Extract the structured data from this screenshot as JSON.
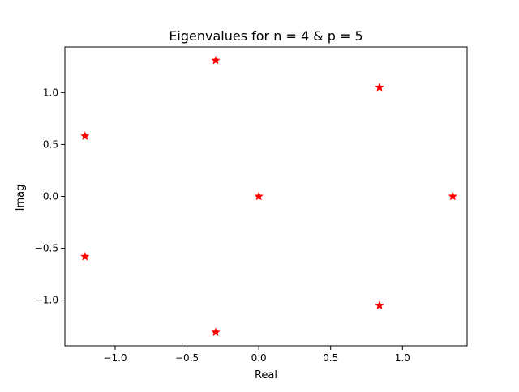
{
  "chart_data": {
    "type": "scatter",
    "title": "Eigenvalues for n = 4 & p = 5",
    "xlabel": "Real",
    "ylabel": "Imag",
    "xlim": [
      -1.35,
      1.45
    ],
    "ylim": [
      -1.44,
      1.44
    ],
    "x_ticks": [
      -1.0,
      -0.5,
      0.0,
      0.5,
      1.0
    ],
    "x_tick_labels": [
      "−1.0",
      "−0.5",
      "0.0",
      "0.5",
      "1.0"
    ],
    "y_ticks": [
      -1.0,
      -0.5,
      0.0,
      0.5,
      1.0
    ],
    "y_tick_labels": [
      "−1.0",
      "−0.5",
      "0.0",
      "0.5",
      "1.0"
    ],
    "grid": false,
    "marker": "star",
    "marker_color": "#ff0000",
    "series": [
      {
        "points": [
          {
            "x": -0.3,
            "y": 1.31
          },
          {
            "x": 0.84,
            "y": 1.05
          },
          {
            "x": -1.21,
            "y": 0.58
          },
          {
            "x": 0.0,
            "y": 0.0
          },
          {
            "x": 1.35,
            "y": 0.0
          },
          {
            "x": -1.21,
            "y": -0.58
          },
          {
            "x": 0.84,
            "y": -1.05
          },
          {
            "x": -0.3,
            "y": -1.31
          }
        ]
      }
    ]
  }
}
